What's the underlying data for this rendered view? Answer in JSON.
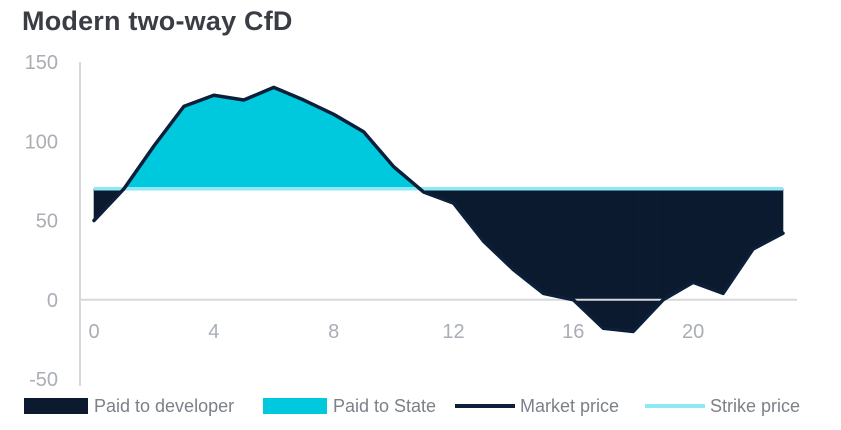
{
  "chart_data": {
    "type": "area",
    "title": "Modern two-way CfD",
    "xlabel": "",
    "ylabel": "",
    "xlim": [
      0,
      23
    ],
    "ylim": [
      -50,
      150
    ],
    "x_ticks": [
      0,
      4,
      8,
      12,
      16,
      20
    ],
    "y_ticks": [
      150,
      100,
      50,
      0,
      -50
    ],
    "x": [
      0,
      1,
      2,
      3,
      4,
      5,
      6,
      7,
      8,
      9,
      10,
      11,
      12,
      13,
      14,
      15,
      16,
      17,
      18,
      19,
      20,
      21,
      22,
      23
    ],
    "series": [
      {
        "name": "Market price",
        "type": "line",
        "color": "#0b1f3a",
        "values": [
          50,
          70,
          97,
          122,
          129,
          126,
          134,
          126,
          117,
          106,
          84,
          68,
          61,
          37,
          19,
          4,
          0,
          -18,
          -20,
          0,
          11,
          4,
          32,
          42
        ]
      },
      {
        "name": "Strike price",
        "type": "line",
        "color": "#8fe9f5",
        "values": [
          70,
          70,
          70,
          70,
          70,
          70,
          70,
          70,
          70,
          70,
          70,
          70,
          70,
          70,
          70,
          70,
          70,
          70,
          70,
          70,
          70,
          70,
          70,
          70
        ]
      }
    ],
    "fills": [
      {
        "name": "Paid to developer",
        "color": "#0b1a2e",
        "rule": "market below strike"
      },
      {
        "name": "Paid to State",
        "color": "#00c9de",
        "rule": "market above strike"
      }
    ],
    "legend": {
      "placement": "bottom",
      "items": [
        {
          "label": "Paid to developer",
          "kind": "patch",
          "color": "#0b1a2e"
        },
        {
          "label": "Paid to State",
          "kind": "patch",
          "color": "#00c9de"
        },
        {
          "label": "Market price",
          "kind": "line",
          "color": "#0b1f3a"
        },
        {
          "label": "Strike price",
          "kind": "line",
          "color": "#8fe9f5"
        }
      ]
    },
    "grid": false,
    "colors": {
      "axis": "#d6d8dc",
      "tick_label": "#a9adb6"
    }
  }
}
